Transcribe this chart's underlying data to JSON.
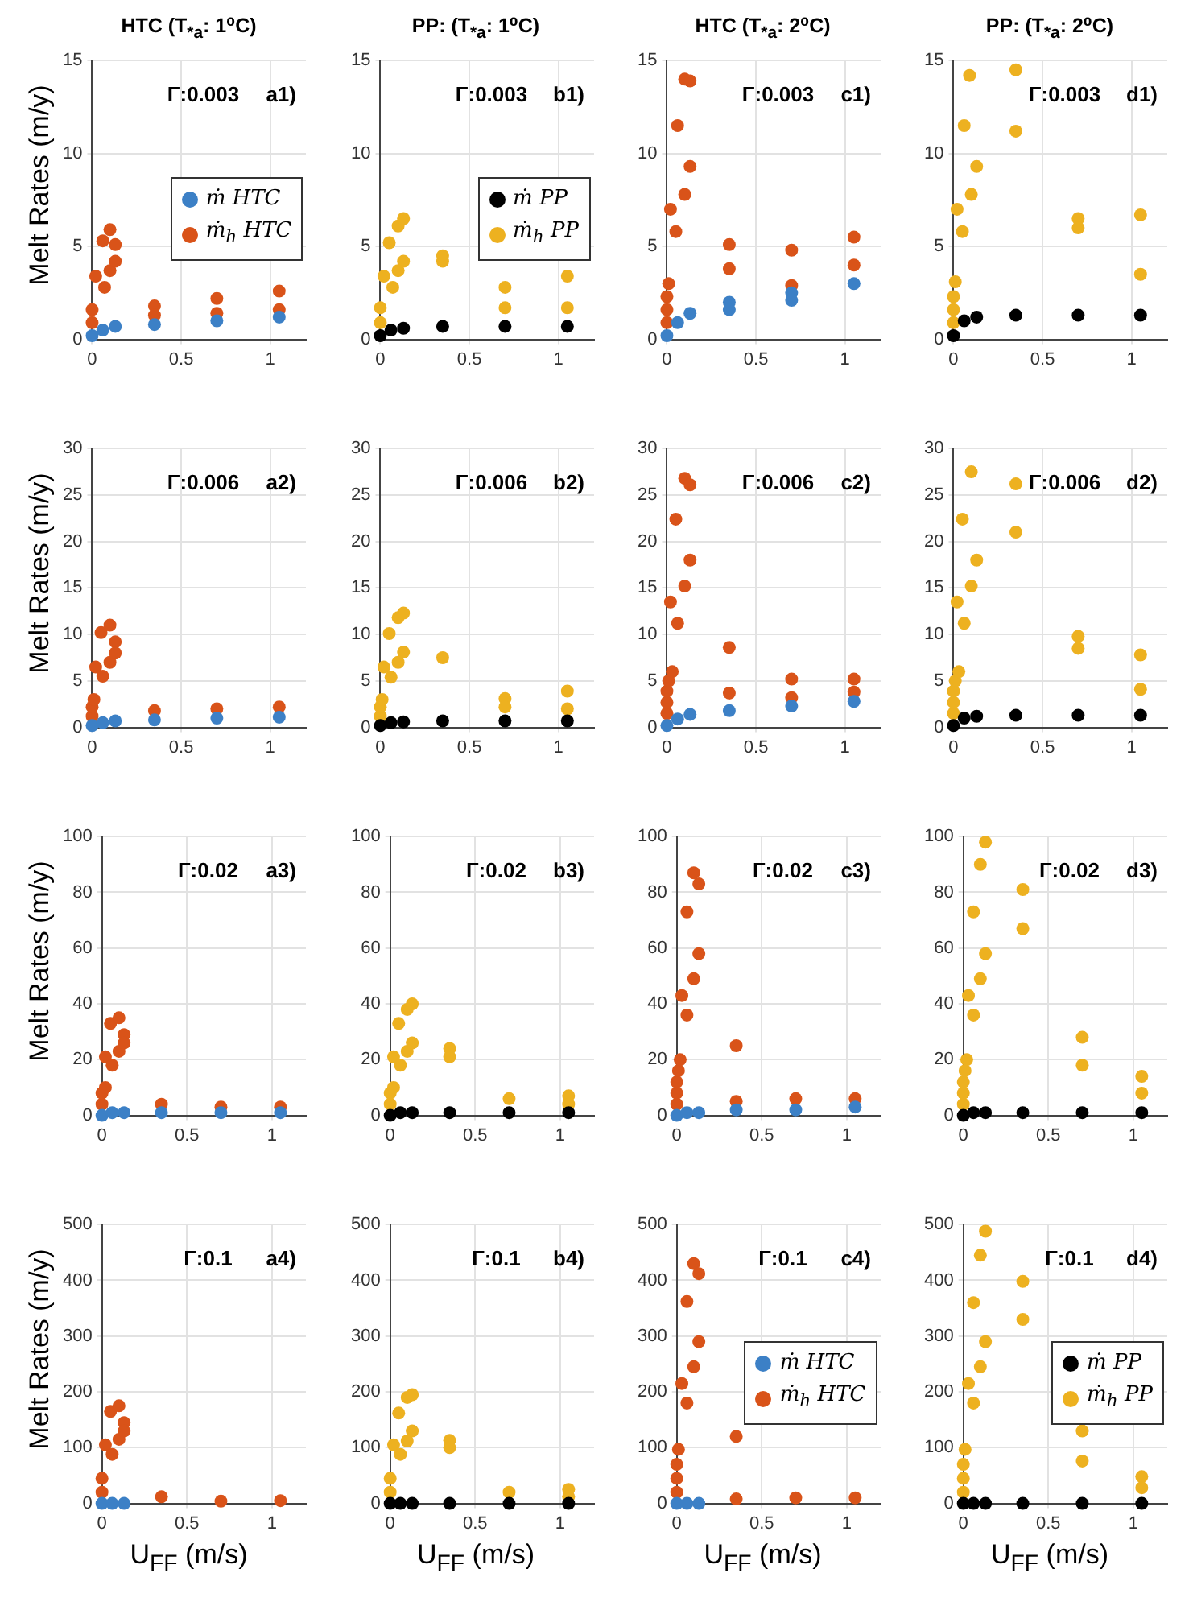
{
  "chart_data": [
    {
      "type": "scatter",
      "title": "HTC (T$_{*a}$: 1⁰C)",
      "ylabel": "Melt Rates (m/y)",
      "annotations": [
        "Γ:0.003",
        "a1)"
      ],
      "xlim": [
        0,
        1.2
      ],
      "xticks": [
        0,
        0.5,
        1
      ],
      "ylim": [
        0,
        15
      ],
      "yticks": [
        0,
        5,
        10,
        15
      ],
      "grid": true,
      "marker": "circle",
      "legend": "right",
      "series": [
        {
          "name": "ṁ HTC",
          "color": "#3c80c6",
          "x": [
            0,
            0.06,
            0.13,
            0.35,
            0.7,
            1.05
          ],
          "values": [
            0.2,
            0.5,
            0.7,
            0.8,
            1.0,
            1.2
          ]
        },
        {
          "name": "ṁ$_{h}$ HTC",
          "color": "#d95319",
          "x": [
            0,
            0,
            0.02,
            0.06,
            0.07,
            0.1,
            0.1,
            0.13,
            0.13,
            0.35,
            0.35,
            0.7,
            0.7,
            1.05,
            1.05
          ],
          "values": [
            0.9,
            1.6,
            3.4,
            5.3,
            2.8,
            5.9,
            3.7,
            5.1,
            4.2,
            1.8,
            1.3,
            2.2,
            1.4,
            2.6,
            1.6
          ]
        }
      ]
    },
    {
      "type": "scatter",
      "title": "PP: (T$_{*a}$: 1⁰C)",
      "annotations": [
        "Γ:0.003",
        "b1)"
      ],
      "xlim": [
        0,
        1.2
      ],
      "xticks": [
        0,
        0.5,
        1
      ],
      "ylim": [
        0,
        15
      ],
      "yticks": [
        0,
        5,
        10,
        15
      ],
      "grid": true,
      "marker": "circle",
      "legend": "right",
      "series": [
        {
          "name": "ṁ PP",
          "color": "#000000",
          "x": [
            0,
            0.06,
            0.13,
            0.35,
            0.7,
            1.05
          ],
          "values": [
            0.2,
            0.5,
            0.6,
            0.7,
            0.7,
            0.7
          ]
        },
        {
          "name": "ṁ$_{h}$ PP",
          "color": "#edb120",
          "x": [
            0,
            0,
            0.02,
            0.05,
            0.07,
            0.1,
            0.1,
            0.13,
            0.13,
            0.35,
            0.35,
            0.7,
            0.7,
            1.05,
            1.05
          ],
          "values": [
            0.9,
            1.7,
            3.4,
            5.2,
            2.8,
            6.1,
            3.7,
            6.5,
            4.2,
            4.5,
            4.2,
            2.8,
            1.7,
            3.4,
            1.7
          ]
        }
      ]
    },
    {
      "type": "scatter",
      "title": "HTC (T$_{*a}$: 2⁰C)",
      "annotations": [
        "Γ:0.003",
        "c1)"
      ],
      "xlim": [
        0,
        1.2
      ],
      "xticks": [
        0,
        0.5,
        1
      ],
      "ylim": [
        0,
        15
      ],
      "yticks": [
        0,
        5,
        10,
        15
      ],
      "grid": true,
      "marker": "circle",
      "series": [
        {
          "color": "#3c80c6",
          "x": [
            0,
            0.06,
            0.13,
            0.35,
            0.35,
            0.7,
            0.7,
            1.05
          ],
          "values": [
            0.2,
            0.9,
            1.4,
            2.0,
            1.6,
            2.5,
            2.1,
            3.0
          ]
        },
        {
          "color": "#d95319",
          "x": [
            0,
            0,
            0,
            0.01,
            0.02,
            0.05,
            0.06,
            0.1,
            0.1,
            0.13,
            0.13,
            0.35,
            0.35,
            0.7,
            0.7,
            1.05,
            1.05
          ],
          "values": [
            0.9,
            1.6,
            2.3,
            3.0,
            7.0,
            5.8,
            11.5,
            14.0,
            7.8,
            13.9,
            9.3,
            5.1,
            3.8,
            4.8,
            2.9,
            5.5,
            4.0
          ]
        }
      ]
    },
    {
      "type": "scatter",
      "title": "PP: (T$_{*a}$: 2⁰C)",
      "annotations": [
        "Γ:0.003",
        "d1)"
      ],
      "xlim": [
        0,
        1.2
      ],
      "xticks": [
        0,
        0.5,
        1
      ],
      "ylim": [
        0,
        15
      ],
      "yticks": [
        0,
        5,
        10,
        15
      ],
      "grid": true,
      "marker": "circle",
      "series": [
        {
          "color": "#000000",
          "x": [
            0,
            0.06,
            0.13,
            0.35,
            0.7,
            1.05
          ],
          "values": [
            0.2,
            1.0,
            1.2,
            1.3,
            1.3,
            1.3
          ]
        },
        {
          "color": "#edb120",
          "x": [
            0,
            0,
            0,
            0.01,
            0.02,
            0.05,
            0.06,
            0.09,
            0.1,
            0.13,
            0.35,
            0.35,
            0.7,
            0.7,
            1.05,
            1.05
          ],
          "values": [
            0.9,
            1.6,
            2.3,
            3.1,
            7.0,
            5.8,
            11.5,
            14.2,
            7.8,
            9.3,
            14.5,
            11.2,
            6.5,
            6.0,
            6.7,
            3.5
          ]
        }
      ]
    },
    {
      "type": "scatter",
      "ylabel": "Melt Rates (m/y)",
      "annotations": [
        "Γ:0.006",
        "a2)"
      ],
      "xlim": [
        0,
        1.2
      ],
      "xticks": [
        0,
        0.5,
        1
      ],
      "ylim": [
        0,
        30
      ],
      "yticks": [
        0,
        5,
        10,
        15,
        20,
        25,
        30
      ],
      "grid": true,
      "marker": "circle",
      "series": [
        {
          "color": "#3c80c6",
          "x": [
            0,
            0.06,
            0.13,
            0.35,
            0.7,
            1.05
          ],
          "values": [
            0.2,
            0.5,
            0.7,
            0.8,
            1.0,
            1.1
          ]
        },
        {
          "color": "#d95319",
          "x": [
            0,
            0,
            0.01,
            0.02,
            0.05,
            0.06,
            0.1,
            0.1,
            0.13,
            0.13,
            0.35,
            0.7,
            1.05
          ],
          "values": [
            1.2,
            2.2,
            3.0,
            6.5,
            10.2,
            5.5,
            11.0,
            7.0,
            9.2,
            8.0,
            1.8,
            2.0,
            2.2
          ]
        }
      ]
    },
    {
      "type": "scatter",
      "annotations": [
        "Γ:0.006",
        "b2)"
      ],
      "xlim": [
        0,
        1.2
      ],
      "xticks": [
        0,
        0.5,
        1
      ],
      "ylim": [
        0,
        30
      ],
      "yticks": [
        0,
        5,
        10,
        15,
        20,
        25,
        30
      ],
      "grid": true,
      "marker": "circle",
      "series": [
        {
          "color": "#000000",
          "x": [
            0,
            0.06,
            0.13,
            0.35,
            0.7,
            1.05
          ],
          "values": [
            0.2,
            0.5,
            0.6,
            0.7,
            0.7,
            0.7
          ]
        },
        {
          "color": "#edb120",
          "x": [
            0,
            0,
            0.01,
            0.02,
            0.05,
            0.06,
            0.1,
            0.1,
            0.13,
            0.13,
            0.35,
            0.7,
            0.7,
            1.05,
            1.05
          ],
          "values": [
            1.2,
            2.2,
            3.0,
            6.5,
            10.1,
            5.4,
            11.8,
            7.0,
            12.3,
            8.1,
            7.5,
            3.1,
            2.2,
            3.9,
            2.0
          ]
        }
      ]
    },
    {
      "type": "scatter",
      "annotations": [
        "Γ:0.006",
        "c2)"
      ],
      "xlim": [
        0,
        1.2
      ],
      "xticks": [
        0,
        0.5,
        1
      ],
      "ylim": [
        0,
        30
      ],
      "yticks": [
        0,
        5,
        10,
        15,
        20,
        25,
        30
      ],
      "grid": true,
      "marker": "circle",
      "series": [
        {
          "color": "#3c80c6",
          "x": [
            0,
            0.06,
            0.13,
            0.35,
            0.7,
            1.05
          ],
          "values": [
            0.2,
            0.9,
            1.4,
            1.8,
            2.3,
            2.8
          ]
        },
        {
          "color": "#d95319",
          "x": [
            0,
            0,
            0,
            0.01,
            0.02,
            0.03,
            0.05,
            0.06,
            0.1,
            0.1,
            0.13,
            0.13,
            0.35,
            0.35,
            0.7,
            0.7,
            1.05,
            1.05
          ],
          "values": [
            1.5,
            2.7,
            3.9,
            5.0,
            13.5,
            6.0,
            22.4,
            11.2,
            26.8,
            15.2,
            26.1,
            18.0,
            8.6,
            3.7,
            5.2,
            3.2,
            5.2,
            3.8
          ]
        }
      ]
    },
    {
      "type": "scatter",
      "annotations": [
        "Γ:0.006",
        "d2)"
      ],
      "xlim": [
        0,
        1.2
      ],
      "xticks": [
        0,
        0.5,
        1
      ],
      "ylim": [
        0,
        30
      ],
      "yticks": [
        0,
        5,
        10,
        15,
        20,
        25,
        30
      ],
      "grid": true,
      "marker": "circle",
      "series": [
        {
          "color": "#000000",
          "x": [
            0,
            0.06,
            0.13,
            0.35,
            0.7,
            1.05
          ],
          "values": [
            0.2,
            1.0,
            1.2,
            1.3,
            1.3,
            1.3
          ]
        },
        {
          "color": "#edb120",
          "x": [
            0,
            0,
            0,
            0.01,
            0.02,
            0.03,
            0.05,
            0.06,
            0.1,
            0.1,
            0.13,
            0.35,
            0.35,
            0.7,
            0.7,
            1.05,
            1.05
          ],
          "values": [
            1.5,
            2.7,
            3.9,
            5.0,
            13.5,
            6.0,
            22.4,
            11.2,
            27.5,
            15.2,
            18.0,
            26.2,
            21.0,
            9.8,
            8.5,
            7.8,
            4.1
          ]
        }
      ]
    },
    {
      "type": "scatter",
      "ylabel": "Melt Rates (m/y)",
      "annotations": [
        "Γ:0.02",
        "a3)"
      ],
      "xlim": [
        0,
        1.2
      ],
      "xticks": [
        0,
        0.5,
        1
      ],
      "ylim": [
        0,
        100
      ],
      "yticks": [
        0,
        20,
        40,
        60,
        80,
        100
      ],
      "grid": true,
      "marker": "circle",
      "series": [
        {
          "color": "#3c80c6",
          "x": [
            0,
            0.06,
            0.13,
            0.35,
            0.7,
            1.05
          ],
          "values": [
            0,
            1,
            1,
            1,
            1,
            1
          ]
        },
        {
          "color": "#d95319",
          "x": [
            0,
            0,
            0.02,
            0.02,
            0.05,
            0.06,
            0.1,
            0.1,
            0.13,
            0.13,
            0.35,
            0.7,
            1.05
          ],
          "values": [
            4,
            8,
            10,
            21,
            33,
            18,
            35,
            23,
            29,
            26,
            4,
            3,
            3
          ]
        }
      ]
    },
    {
      "type": "scatter",
      "annotations": [
        "Γ:0.02",
        "b3)"
      ],
      "xlim": [
        0,
        1.2
      ],
      "xticks": [
        0,
        0.5,
        1
      ],
      "ylim": [
        0,
        100
      ],
      "yticks": [
        0,
        20,
        40,
        60,
        80,
        100
      ],
      "grid": true,
      "marker": "circle",
      "series": [
        {
          "color": "#000000",
          "x": [
            0,
            0.06,
            0.13,
            0.35,
            0.7,
            1.05
          ],
          "values": [
            0,
            1,
            1,
            1,
            1,
            1
          ]
        },
        {
          "color": "#edb120",
          "x": [
            0,
            0,
            0.02,
            0.02,
            0.05,
            0.06,
            0.1,
            0.1,
            0.13,
            0.13,
            0.35,
            0.35,
            0.7,
            1.05,
            1.05
          ],
          "values": [
            4,
            8,
            10,
            21,
            33,
            18,
            38,
            23,
            40,
            26,
            24,
            21,
            6,
            7,
            4
          ]
        }
      ]
    },
    {
      "type": "scatter",
      "annotations": [
        "Γ:0.02",
        "c3)"
      ],
      "xlim": [
        0,
        1.2
      ],
      "xticks": [
        0,
        0.5,
        1
      ],
      "ylim": [
        0,
        100
      ],
      "yticks": [
        0,
        20,
        40,
        60,
        80,
        100
      ],
      "grid": true,
      "marker": "circle",
      "series": [
        {
          "color": "#3c80c6",
          "x": [
            0,
            0.06,
            0.13,
            0.35,
            0.7,
            1.05
          ],
          "values": [
            0,
            1,
            1,
            2,
            2,
            3
          ]
        },
        {
          "color": "#d95319",
          "x": [
            0,
            0,
            0,
            0.01,
            0.02,
            0.03,
            0.06,
            0.06,
            0.1,
            0.1,
            0.13,
            0.13,
            0.35,
            0.35,
            0.7,
            1.05
          ],
          "values": [
            4,
            8,
            12,
            16,
            20,
            43,
            73,
            36,
            87,
            49,
            83,
            58,
            25,
            5,
            6,
            6
          ]
        }
      ]
    },
    {
      "type": "scatter",
      "annotations": [
        "Γ:0.02",
        "d3)"
      ],
      "xlim": [
        0,
        1.2
      ],
      "xticks": [
        0,
        0.5,
        1
      ],
      "ylim": [
        0,
        100
      ],
      "yticks": [
        0,
        20,
        40,
        60,
        80,
        100
      ],
      "grid": true,
      "marker": "circle",
      "series": [
        {
          "color": "#000000",
          "x": [
            0,
            0.06,
            0.13,
            0.35,
            0.7,
            1.05
          ],
          "values": [
            0,
            1,
            1,
            1,
            1,
            1
          ]
        },
        {
          "color": "#edb120",
          "x": [
            0,
            0,
            0,
            0.01,
            0.02,
            0.03,
            0.06,
            0.06,
            0.1,
            0.1,
            0.13,
            0.13,
            0.35,
            0.35,
            0.7,
            0.7,
            1.05,
            1.05
          ],
          "values": [
            4,
            8,
            12,
            16,
            20,
            43,
            73,
            36,
            90,
            49,
            98,
            58,
            81,
            67,
            28,
            18,
            14,
            8
          ]
        }
      ]
    },
    {
      "type": "scatter",
      "ylabel": "Melt Rates (m/y)",
      "xlabel": "U$_{FF}$ (m/s)",
      "annotations": [
        "Γ:0.1",
        "a4)"
      ],
      "xlim": [
        0,
        1.2
      ],
      "xticks": [
        0,
        0.5,
        1
      ],
      "ylim": [
        0,
        500
      ],
      "yticks": [
        0,
        100,
        200,
        300,
        400,
        500
      ],
      "grid": true,
      "marker": "circle",
      "series": [
        {
          "color": "#3c80c6",
          "x": [
            0,
            0.06,
            0.13
          ],
          "values": [
            0,
            0,
            0
          ]
        },
        {
          "color": "#d95319",
          "x": [
            0,
            0,
            0.02,
            0.05,
            0.06,
            0.1,
            0.1,
            0.13,
            0.13,
            0.35,
            0.7,
            1.05
          ],
          "values": [
            20,
            45,
            105,
            165,
            88,
            175,
            115,
            145,
            130,
            12,
            4,
            5
          ]
        }
      ]
    },
    {
      "type": "scatter",
      "xlabel": "U$_{FF}$ (m/s)",
      "annotations": [
        "Γ:0.1",
        "b4)"
      ],
      "xlim": [
        0,
        1.2
      ],
      "xticks": [
        0,
        0.5,
        1
      ],
      "ylim": [
        0,
        500
      ],
      "yticks": [
        0,
        100,
        200,
        300,
        400,
        500
      ],
      "grid": true,
      "marker": "circle",
      "series": [
        {
          "color": "#000000",
          "x": [
            0,
            0.06,
            0.13,
            0.35,
            0.7,
            1.05
          ],
          "values": [
            0,
            0,
            0,
            0,
            0,
            0
          ]
        },
        {
          "color": "#edb120",
          "x": [
            0,
            0,
            0.02,
            0.05,
            0.06,
            0.1,
            0.1,
            0.13,
            0.13,
            0.35,
            0.35,
            0.7,
            1.05,
            1.05
          ],
          "values": [
            20,
            45,
            105,
            162,
            88,
            190,
            112,
            195,
            130,
            113,
            100,
            20,
            25,
            12
          ]
        }
      ]
    },
    {
      "type": "scatter",
      "xlabel": "U$_{FF}$ (m/s)",
      "annotations": [
        "Γ:0.1",
        "c4)"
      ],
      "xlim": [
        0,
        1.2
      ],
      "xticks": [
        0,
        0.5,
        1
      ],
      "ylim": [
        0,
        500
      ],
      "yticks": [
        0,
        100,
        200,
        300,
        400,
        500
      ],
      "grid": true,
      "marker": "circle",
      "legend": "right",
      "series": [
        {
          "name": "ṁ HTC",
          "color": "#3c80c6",
          "x": [
            0,
            0.06,
            0.13
          ],
          "values": [
            0,
            0,
            0
          ]
        },
        {
          "name": "ṁ$_{h}$ HTC",
          "color": "#d95319",
          "x": [
            0,
            0,
            0,
            0.01,
            0.03,
            0.06,
            0.06,
            0.1,
            0.1,
            0.13,
            0.13,
            0.35,
            0.35,
            0.7,
            1.05
          ],
          "values": [
            20,
            45,
            70,
            97,
            215,
            362,
            180,
            430,
            245,
            412,
            290,
            120,
            8,
            10,
            10
          ]
        }
      ]
    },
    {
      "type": "scatter",
      "xlabel": "U$_{FF}$ (m/s)",
      "annotations": [
        "Γ:0.1",
        "d4)"
      ],
      "xlim": [
        0,
        1.2
      ],
      "xticks": [
        0,
        0.5,
        1
      ],
      "ylim": [
        0,
        500
      ],
      "yticks": [
        0,
        100,
        200,
        300,
        400,
        500
      ],
      "grid": true,
      "marker": "circle",
      "legend": "right",
      "series": [
        {
          "name": "ṁ PP",
          "color": "#000000",
          "x": [
            0,
            0.06,
            0.13,
            0.35,
            0.7,
            1.05
          ],
          "values": [
            0,
            0,
            0,
            0,
            0,
            0
          ]
        },
        {
          "name": "ṁ$_{h}$ PP",
          "color": "#edb120",
          "x": [
            0,
            0,
            0,
            0.01,
            0.03,
            0.06,
            0.06,
            0.1,
            0.1,
            0.13,
            0.13,
            0.35,
            0.35,
            0.7,
            0.7,
            1.05,
            1.05
          ],
          "values": [
            20,
            45,
            70,
            97,
            215,
            360,
            180,
            445,
            245,
            488,
            290,
            398,
            330,
            130,
            76,
            48,
            28
          ]
        }
      ]
    }
  ]
}
